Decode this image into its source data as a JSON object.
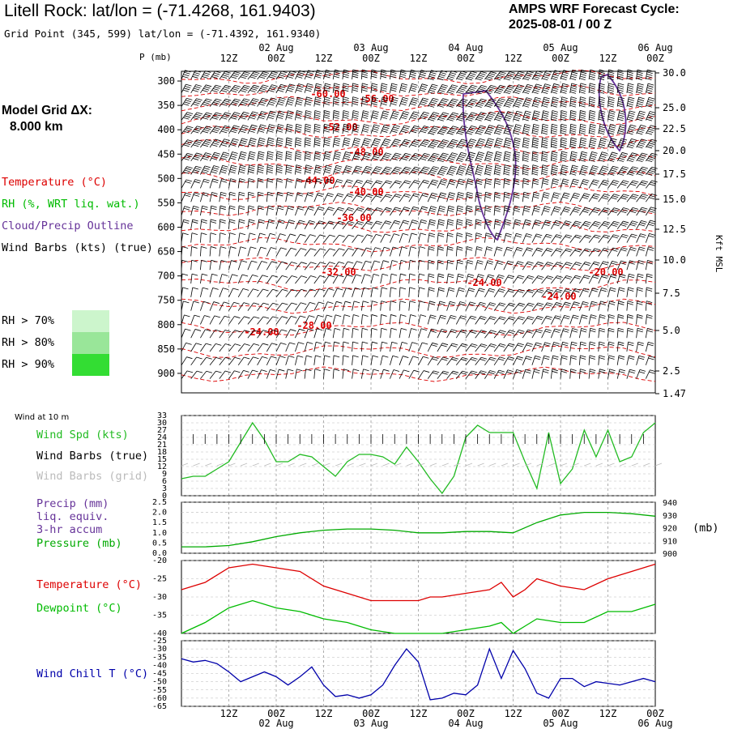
{
  "header": {
    "title": "Litell Rock:  lat/lon = (-71.4268, 161.9403)",
    "subtitle": "Grid Point (345, 599) lat/lon = (-71.4392, 161.9340)",
    "cycle_line1": "AMPS WRF Forecast Cycle:",
    "cycle_line2": "2025-08-01 / 00  Z",
    "grid_line1": "Model Grid ΔX:",
    "grid_line2": "8.000 km"
  },
  "legend": {
    "temperature": "Temperature (°C)",
    "rh": "RH (%, WRT liq. wat.)",
    "cloud": "Cloud/Precip Outline",
    "wind": "Wind Barbs (kts) (true)",
    "rh70": "RH > 70%",
    "rh80": "RH > 80%",
    "rh90": "RH > 90%",
    "colors": {
      "rh70": "#ccf5cc",
      "rh80": "#99e699",
      "rh90": "#33dd33"
    }
  },
  "colors": {
    "temperature": "#dd0000",
    "rh_text": "#00bb00",
    "cloud": "#663399",
    "pressure": "#00aa00",
    "dewpoint": "#00bb00",
    "windchill": "#0000aa",
    "windspd": "#22bb22"
  },
  "top_axis": {
    "p_label": "P (mb)",
    "right_label": "Kft MSL",
    "time_labels": [
      "12Z",
      "00Z",
      "12Z",
      "00Z",
      "12Z",
      "00Z",
      "12Z",
      "00Z",
      "12Z",
      "00Z"
    ],
    "date_labels": [
      "02 Aug",
      "03 Aug",
      "04 Aug",
      "05 Aug",
      "06 Aug"
    ],
    "pressure_ticks": [
      "300",
      "350",
      "400",
      "450",
      "500",
      "550",
      "600",
      "650",
      "700",
      "750",
      "800",
      "850",
      "900"
    ],
    "height_ticks": [
      "30.0",
      "25.0",
      "22.5",
      "20.0",
      "17.5",
      "15.0",
      "12.5",
      "10.0",
      "7.5",
      "5.0",
      "2.5",
      "1.47"
    ]
  },
  "bottom_axis": {
    "time_labels": [
      "12Z",
      "00Z",
      "12Z",
      "00Z",
      "12Z",
      "00Z",
      "12Z",
      "00Z",
      "12Z",
      "00Z"
    ],
    "date_labels": [
      "02 Aug",
      "03 Aug",
      "04 Aug",
      "05 Aug",
      "06 Aug"
    ]
  },
  "panels": {
    "wind": {
      "title": "Wind at 10 m",
      "l1": "Wind Spd (kts)",
      "l2": "Wind Barbs (true)",
      "l3": "Wind Barbs (grid)",
      "yticks": [
        "33",
        "30",
        "27",
        "24",
        "21",
        "18",
        "15",
        "12",
        "9",
        "6",
        "3",
        "0"
      ]
    },
    "precip": {
      "l1": "Precip (mm)",
      "l2": "liq. equiv.",
      "l3": "3-hr accum",
      "l4": "Pressure (mb)",
      "unit": "(mb)",
      "yticks_left": [
        "2.5",
        "2.0",
        "1.5",
        "1.0",
        "0.5",
        "0.0"
      ],
      "yticks_right": [
        "940",
        "930",
        "920",
        "910",
        "900"
      ]
    },
    "temp": {
      "l1": "Temperature (°C)",
      "l2": "Dewpoint (°C)",
      "yticks": [
        "-20",
        "-25",
        "-30",
        "-35",
        "-40"
      ]
    },
    "chill": {
      "l1": "Wind Chill T (°C)",
      "yticks": [
        "-25",
        "-30",
        "-35",
        "-40",
        "-45",
        "-50",
        "-55",
        "-60",
        "-65"
      ]
    }
  },
  "chart_data": [
    {
      "type": "line",
      "panel": "time-height cross section",
      "contour_labels": [
        "-60.00",
        "-56.00",
        "-52.00",
        "-48.00",
        "-44.00",
        "-40.00",
        "-36.00",
        "-32.00",
        "-28.00",
        "-24.00",
        "-24.00",
        "-24.00",
        "-20.00"
      ],
      "ylim_mb": [
        280,
        940
      ],
      "x_hours": [
        0,
        120
      ]
    },
    {
      "type": "line",
      "panel": "wind speed 10 m",
      "x_hours": [
        0,
        3,
        6,
        9,
        12,
        15,
        18,
        21,
        24,
        27,
        30,
        33,
        36,
        39,
        42,
        45,
        48,
        51,
        54,
        57,
        60,
        63,
        66,
        69,
        72,
        75,
        78,
        81,
        84,
        87,
        90,
        93,
        96,
        99,
        102,
        105,
        108,
        111,
        114,
        117,
        120
      ],
      "series": [
        {
          "name": "Wind Spd (kts)",
          "values": [
            7,
            8,
            8,
            11,
            14,
            22,
            30,
            23,
            14,
            14,
            17,
            16,
            12,
            8,
            14,
            17,
            17,
            16,
            13,
            20,
            14,
            7,
            1,
            8,
            24,
            29,
            26,
            26,
            26,
            14,
            3,
            26,
            5,
            11,
            27,
            16,
            27,
            14,
            16,
            26,
            30
          ]
        }
      ],
      "ylim": [
        0,
        33
      ]
    },
    {
      "type": "line",
      "panel": "surface pressure",
      "x_hours": [
        0,
        6,
        12,
        18,
        24,
        30,
        36,
        42,
        48,
        54,
        60,
        66,
        72,
        78,
        84,
        90,
        96,
        102,
        108,
        114,
        120
      ],
      "series": [
        {
          "name": "Pressure (mb)",
          "values": [
            905,
            905,
            906,
            909,
            913,
            916,
            918,
            919,
            919,
            918,
            916,
            916,
            917,
            917,
            916,
            924,
            930,
            932,
            932,
            931,
            929
          ]
        }
      ],
      "ylim": [
        900,
        940
      ]
    },
    {
      "type": "line",
      "panel": "temperature and dewpoint",
      "x_hours": [
        0,
        6,
        12,
        18,
        24,
        30,
        36,
        42,
        48,
        54,
        60,
        63,
        66,
        72,
        78,
        81,
        84,
        87,
        90,
        96,
        102,
        108,
        114,
        120
      ],
      "series": [
        {
          "name": "Temperature (°C)",
          "values": [
            -28,
            -26,
            -22,
            -21,
            -22,
            -23,
            -27,
            -29,
            -31,
            -31,
            -31,
            -30,
            -30,
            -29,
            -28,
            -26,
            -30,
            -28,
            -25,
            -27,
            -28,
            -25,
            -23,
            -21
          ]
        },
        {
          "name": "Dewpoint (°C)",
          "values": [
            -40,
            -37,
            -33,
            -31,
            -33,
            -34,
            -36,
            -37,
            -39,
            -40,
            -40,
            -40,
            -40,
            -39,
            -38,
            -37,
            -40,
            -38,
            -36,
            -37,
            -37,
            -34,
            -34,
            -32
          ]
        }
      ],
      "ylim": [
        -40,
        -20
      ]
    },
    {
      "type": "line",
      "panel": "wind chill",
      "x_hours": [
        0,
        3,
        6,
        9,
        12,
        15,
        18,
        21,
        24,
        27,
        30,
        33,
        36,
        39,
        42,
        45,
        48,
        51,
        54,
        57,
        60,
        63,
        66,
        69,
        72,
        75,
        78,
        81,
        84,
        87,
        90,
        93,
        96,
        99,
        102,
        105,
        108,
        111,
        114,
        117,
        120
      ],
      "series": [
        {
          "name": "Wind Chill T (°C)",
          "values": [
            -36,
            -38,
            -37,
            -39,
            -44,
            -50,
            -47,
            -44,
            -47,
            -52,
            -47,
            -41,
            -52,
            -59,
            -58,
            -60,
            -58,
            -52,
            -40,
            -30,
            -38,
            -61,
            -60,
            -57,
            -58,
            -52,
            -30,
            -48,
            -31,
            -42,
            -57,
            -60,
            -48,
            -48,
            -53,
            -50,
            -51,
            -52,
            -50,
            -48,
            -50
          ]
        }
      ],
      "ylim": [
        -65,
        -25
      ]
    }
  ]
}
